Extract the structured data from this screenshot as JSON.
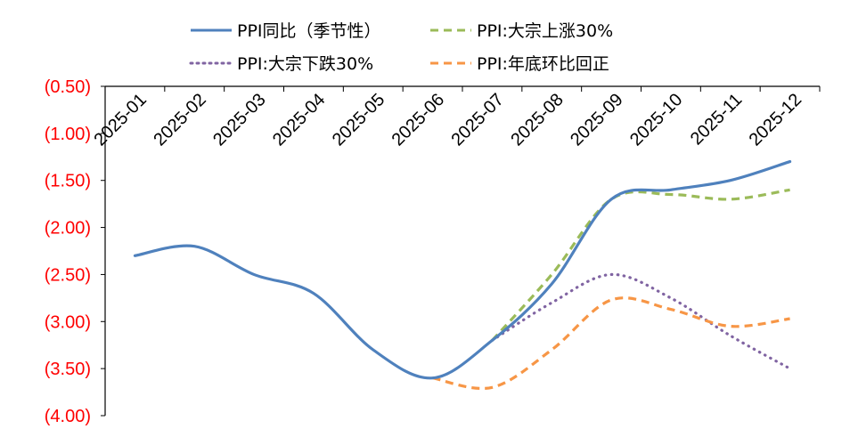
{
  "chart_data": {
    "type": "line",
    "title": "",
    "xlabel": "",
    "ylabel": "",
    "categories": [
      "2025-01",
      "2025-02",
      "2025-03",
      "2025-04",
      "2025-05",
      "2025-06",
      "2025-07",
      "2025-08",
      "2025-09",
      "2025-10",
      "2025-11",
      "2025-12"
    ],
    "ylim": [
      -4.0,
      -0.5
    ],
    "yticks": [
      -0.5,
      -1.0,
      -1.5,
      -2.0,
      -2.5,
      -3.0,
      -3.5,
      -4.0
    ],
    "ytick_labels": [
      "(0.50)",
      "(1.00)",
      "(1.50)",
      "(2.00)",
      "(2.50)",
      "(3.00)",
      "(3.50)",
      "(4.00)"
    ],
    "ytick_color": "#ff0000",
    "x_axis_position": "top",
    "x_tick_rotation": -45,
    "grid": false,
    "legend_position": "top",
    "series": [
      {
        "name": "PPI同比（季节性）",
        "style": "solid",
        "color": "#4f81bd",
        "points": [
          [
            0,
            -2.3
          ],
          [
            1,
            -2.2
          ],
          [
            2,
            -2.5
          ],
          [
            3,
            -2.7
          ],
          [
            4,
            -3.3
          ],
          [
            5,
            -3.6
          ],
          [
            6,
            -3.2
          ],
          [
            7,
            -2.6
          ],
          [
            8,
            -1.7
          ],
          [
            9,
            -1.6
          ],
          [
            10,
            -1.5
          ],
          [
            11,
            -1.3
          ]
        ]
      },
      {
        "name": "PPI:大宗上涨30%",
        "style": "dashed",
        "color": "#9bbb59",
        "points": [
          [
            6,
            -3.2
          ],
          [
            7,
            -2.5
          ],
          [
            8,
            -1.7
          ],
          [
            9,
            -1.65
          ],
          [
            10,
            -1.7
          ],
          [
            11,
            -1.6
          ]
        ]
      },
      {
        "name": "PPI:大宗下跌30%",
        "style": "dotted",
        "color": "#8064a2",
        "points": [
          [
            6,
            -3.2
          ],
          [
            7,
            -2.8
          ],
          [
            8,
            -2.5
          ],
          [
            9,
            -2.75
          ],
          [
            10,
            -3.15
          ],
          [
            11,
            -3.5
          ]
        ]
      },
      {
        "name": "PPI:年底环比回正",
        "style": "dashed",
        "color": "#f79646",
        "points": [
          [
            5,
            -3.6
          ],
          [
            6,
            -3.7
          ],
          [
            7,
            -3.3
          ],
          [
            8,
            -2.77
          ],
          [
            9,
            -2.87
          ],
          [
            10,
            -3.05
          ],
          [
            11,
            -2.97
          ]
        ]
      }
    ]
  }
}
